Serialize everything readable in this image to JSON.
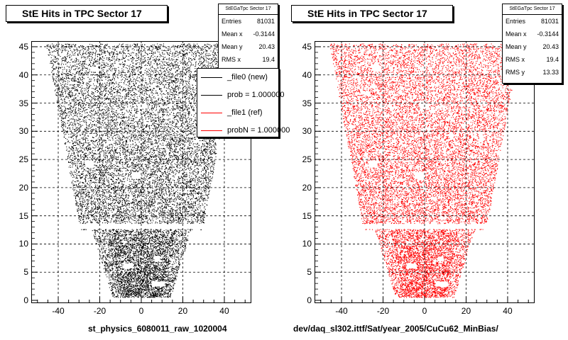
{
  "panels": [
    {
      "title": "StE Hits in TPC Sector 17",
      "stats": {
        "name": "StEGaTpc Sector 17",
        "rows": [
          {
            "label": "Entries",
            "value": "81031"
          },
          {
            "label": "Mean x",
            "value": "-0.3144"
          },
          {
            "label": "Mean y",
            "value": "20.43"
          },
          {
            "label": "RMS x",
            "value": "19.4"
          }
        ]
      },
      "legend": [
        {
          "label": "_file0 (new)",
          "color": "#000000"
        },
        {
          "label": "prob = 1.000000",
          "color": "#000000"
        },
        {
          "label": "_file1 (ref)",
          "color": "#ff0000"
        },
        {
          "label": "probN = 1.000000",
          "color": "#ff0000"
        }
      ],
      "file_label": "st_physics_6080011_raw_1020004",
      "color": "#000000"
    },
    {
      "title": "StE Hits in TPC Sector 17",
      "stats": {
        "name": "StEGaTpc Sector 17",
        "rows": [
          {
            "label": "Entries",
            "value": "81031"
          },
          {
            "label": "Mean x",
            "value": "-0.3144"
          },
          {
            "label": "Mean y",
            "value": "20.43"
          },
          {
            "label": "RMS x",
            "value": "19.4"
          },
          {
            "label": "RMS y",
            "value": "13.33"
          }
        ]
      },
      "file_label": "dev/daq_sl302.ittf/Sat/year_2005/CuCu62_MinBias/",
      "color": "#ff0000"
    }
  ],
  "chart_data": [
    {
      "type": "scatter",
      "title": "StE Hits in TPC Sector 17",
      "x_ticks": [
        -40,
        -20,
        0,
        20,
        40
      ],
      "y_ticks": [
        0,
        5,
        10,
        15,
        20,
        25,
        30,
        35,
        40,
        45
      ],
      "xlim": [
        -53,
        53
      ],
      "ylim": [
        -0.5,
        46
      ],
      "grid": true,
      "point_color": "#000000",
      "entries": 81031
    },
    {
      "type": "scatter",
      "title": "StE Hits in TPC Sector 17",
      "x_ticks": [
        -40,
        -20,
        0,
        20,
        40
      ],
      "y_ticks": [
        0,
        5,
        10,
        15,
        20,
        25,
        30,
        35,
        40,
        45
      ],
      "xlim": [
        -53,
        53
      ],
      "ylim": [
        -0.5,
        46
      ],
      "grid": true,
      "point_color": "#ff0000",
      "entries": 81031
    }
  ]
}
